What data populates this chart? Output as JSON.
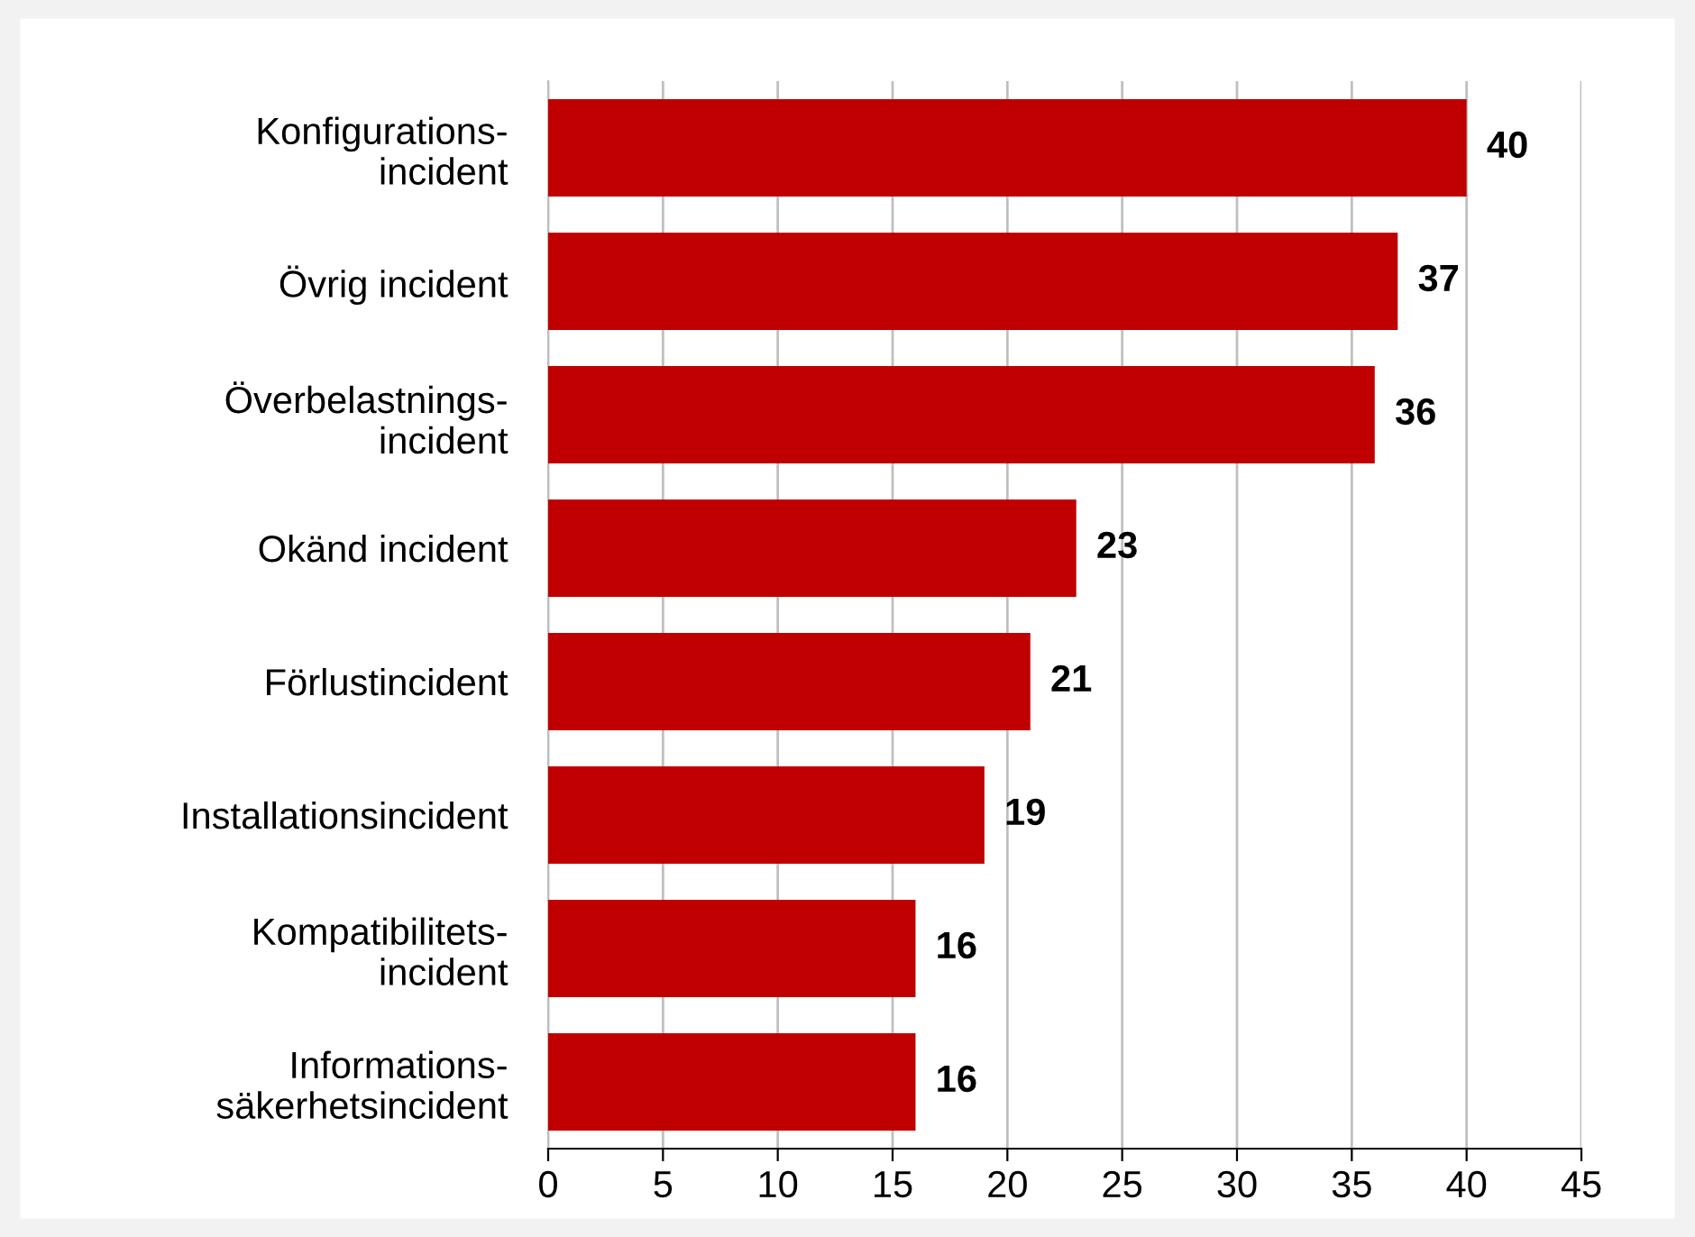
{
  "chart_data": {
    "type": "bar",
    "orientation": "horizontal",
    "categories": [
      "Konfigurations-\nincident",
      "Övrig incident",
      "Överbelastnings-\nincident",
      "Okänd incident",
      "Förlustincident",
      "Installationsincident",
      "Kompatibilitets-\nincident",
      "Informations-\nsäkerhetsincident"
    ],
    "values": [
      40,
      37,
      36,
      23,
      21,
      19,
      16,
      16
    ],
    "color": "#c00000",
    "xlim": [
      0,
      45
    ],
    "xticks": [
      0,
      5,
      10,
      15,
      20,
      25,
      30,
      35,
      40,
      45
    ],
    "grid": "x",
    "data_labels": true
  }
}
